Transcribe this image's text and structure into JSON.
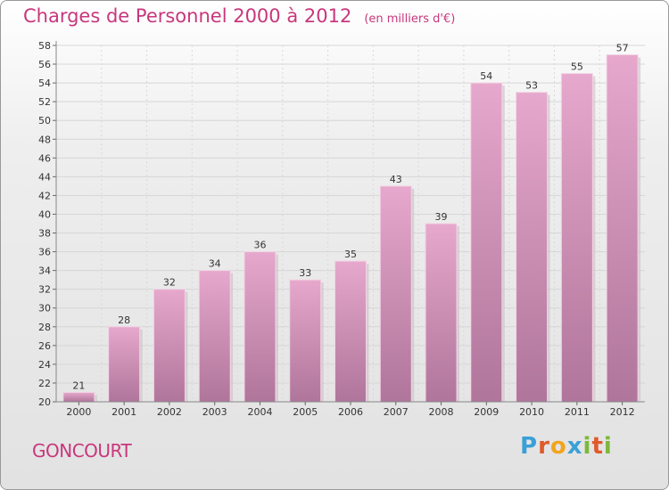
{
  "title": "Charges de Personnel 2000 à 2012",
  "subtitle": "(en milliers d'€)",
  "city": "GONCOURT",
  "logo": {
    "letters": [
      "P",
      "r",
      "o",
      "x",
      "i",
      "t",
      "i"
    ],
    "colors": [
      "#3aa0d8",
      "#e05a2a",
      "#f2a51c",
      "#3aa0d8",
      "#7cb83a",
      "#e05a2a",
      "#7cb83a"
    ]
  },
  "colors": {
    "accent": "#c8377c",
    "bar_top": "#e6a8cc",
    "bar_bottom": "#b0759b"
  },
  "chart_data": {
    "type": "bar",
    "title": "Charges de Personnel 2000 à 2012",
    "subtitle": "(en milliers d'€)",
    "xlabel": "",
    "ylabel": "",
    "categories": [
      "2000",
      "2001",
      "2002",
      "2003",
      "2004",
      "2005",
      "2006",
      "2007",
      "2008",
      "2009",
      "2010",
      "2011",
      "2012"
    ],
    "values": [
      21,
      28,
      32,
      34,
      36,
      33,
      35,
      43,
      39,
      54,
      53,
      55,
      57
    ],
    "ylim": [
      20,
      58
    ],
    "yticks": [
      20,
      22,
      24,
      26,
      28,
      30,
      32,
      34,
      36,
      38,
      40,
      42,
      44,
      46,
      48,
      50,
      52,
      54,
      56,
      58
    ],
    "grid": true,
    "legend": "none"
  }
}
